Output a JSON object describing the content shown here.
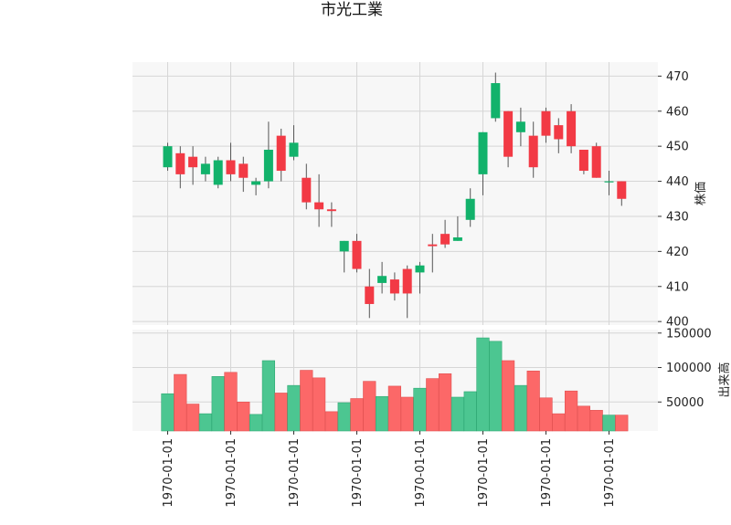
{
  "chart_data": {
    "type": "candlestick",
    "title": "市光工業",
    "price_panel": {
      "ylabel": "株価",
      "ylim": [
        399,
        474
      ],
      "yticks": [
        400,
        410,
        420,
        430,
        440,
        450,
        460,
        470
      ],
      "grid": true
    },
    "volume_panel": {
      "ylabel": "出来高",
      "ylim": [
        8000,
        155000
      ],
      "yticks": [
        50000,
        100000,
        150000
      ],
      "ytick_labels": [
        "50000",
        "100000",
        "150000"
      ],
      "grid": true
    },
    "x_tick_labels": [
      "1970-01-01",
      "1970-01-01",
      "1970-01-01",
      "1970-01-01",
      "1970-01-01",
      "1970-01-01",
      "1970-01-01",
      "1970-01-01"
    ],
    "x_tick_positions": [
      0,
      5,
      10,
      15,
      20,
      25,
      30,
      35
    ],
    "up_color": "#12b26b",
    "down_color": "#f23a45",
    "volume_up_color": "#4cc691",
    "volume_down_color": "#fc6868",
    "candles": [
      {
        "o": 444,
        "h": 451,
        "l": 443,
        "c": 450,
        "v": 62000
      },
      {
        "o": 448,
        "h": 450,
        "l": 438,
        "c": 442,
        "v": 90000
      },
      {
        "o": 447,
        "h": 450,
        "l": 439,
        "c": 444,
        "v": 47000
      },
      {
        "o": 442,
        "h": 447,
        "l": 440,
        "c": 445,
        "v": 33000
      },
      {
        "o": 439,
        "h": 447,
        "l": 438,
        "c": 446,
        "v": 87000
      },
      {
        "o": 446,
        "h": 451,
        "l": 440,
        "c": 442,
        "v": 93000
      },
      {
        "o": 445,
        "h": 447,
        "l": 437,
        "c": 441,
        "v": 50000
      },
      {
        "o": 439,
        "h": 441,
        "l": 436,
        "c": 440,
        "v": 32000
      },
      {
        "o": 440,
        "h": 457,
        "l": 438,
        "c": 449,
        "v": 110000
      },
      {
        "o": 453,
        "h": 455,
        "l": 440,
        "c": 443,
        "v": 63000
      },
      {
        "o": 447,
        "h": 456,
        "l": 446,
        "c": 451,
        "v": 74000
      },
      {
        "o": 441,
        "h": 445,
        "l": 432,
        "c": 434,
        "v": 96000
      },
      {
        "o": 434,
        "h": 442,
        "l": 427,
        "c": 432,
        "v": 85000
      },
      {
        "o": 432,
        "h": 434,
        "l": 427,
        "c": 431.5,
        "v": 36000
      },
      {
        "o": 420,
        "h": 423,
        "l": 414,
        "c": 423,
        "v": 49000
      },
      {
        "o": 423,
        "h": 425,
        "l": 414,
        "c": 415,
        "v": 55000
      },
      {
        "o": 410,
        "h": 415,
        "l": 401,
        "c": 405,
        "v": 80000
      },
      {
        "o": 411,
        "h": 417,
        "l": 408,
        "c": 413,
        "v": 58000
      },
      {
        "o": 412,
        "h": 414,
        "l": 406,
        "c": 408,
        "v": 73000
      },
      {
        "o": 415,
        "h": 416,
        "l": 401,
        "c": 408,
        "v": 57000
      },
      {
        "o": 414,
        "h": 417,
        "l": 408,
        "c": 416,
        "v": 70000
      },
      {
        "o": 422,
        "h": 425,
        "l": 414,
        "c": 421.5,
        "v": 84000
      },
      {
        "o": 425,
        "h": 429,
        "l": 421,
        "c": 422,
        "v": 91000
      },
      {
        "o": 423,
        "h": 430,
        "l": 423,
        "c": 424,
        "v": 57000
      },
      {
        "o": 429,
        "h": 438,
        "l": 427,
        "c": 435,
        "v": 65000
      },
      {
        "o": 442,
        "h": 454,
        "l": 436,
        "c": 454,
        "v": 143000
      },
      {
        "o": 458,
        "h": 471,
        "l": 457,
        "c": 468,
        "v": 138000
      },
      {
        "o": 460,
        "h": 460,
        "l": 444,
        "c": 447,
        "v": 110000
      },
      {
        "o": 454,
        "h": 461,
        "l": 450,
        "c": 457,
        "v": 74000
      },
      {
        "o": 453,
        "h": 457,
        "l": 441,
        "c": 444,
        "v": 95000
      },
      {
        "o": 460,
        "h": 461,
        "l": 451,
        "c": 453,
        "v": 56000
      },
      {
        "o": 456,
        "h": 458,
        "l": 448,
        "c": 452,
        "v": 33000
      },
      {
        "o": 460,
        "h": 462,
        "l": 448,
        "c": 450,
        "v": 66000
      },
      {
        "o": 449,
        "h": 449,
        "l": 442,
        "c": 443,
        "v": 44000
      },
      {
        "o": 450,
        "h": 451,
        "l": 441,
        "c": 441,
        "v": 38000
      },
      {
        "o": 440,
        "h": 443,
        "l": 436,
        "c": 440,
        "v": 31000
      },
      {
        "o": 440,
        "h": 440,
        "l": 433,
        "c": 435,
        "v": 31000
      }
    ]
  }
}
